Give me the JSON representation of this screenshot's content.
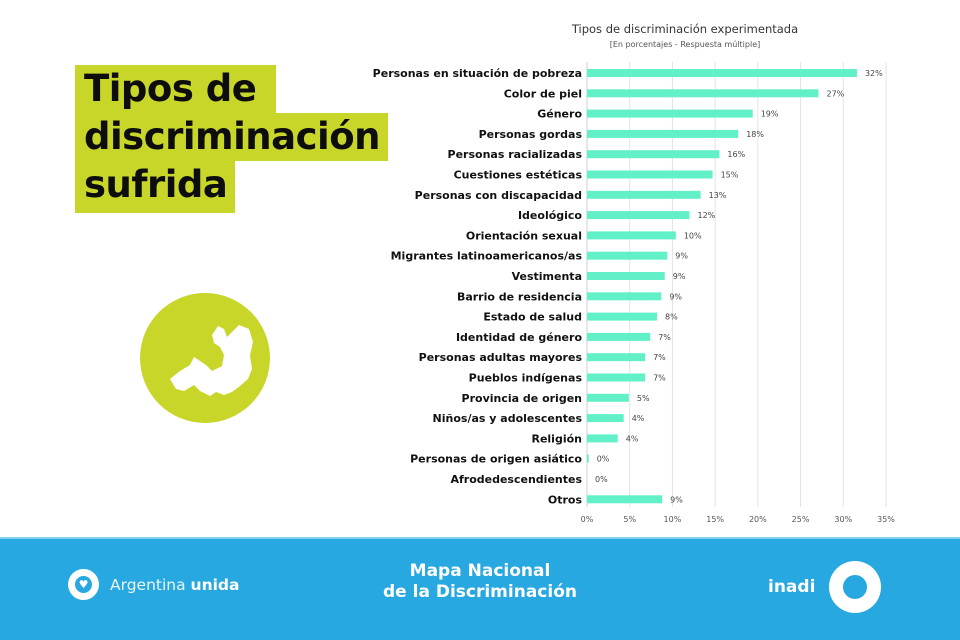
{
  "header": {
    "title_lines": [
      "Tipos de",
      "discriminación",
      "sufrida"
    ],
    "accent_color": "#c8d62a"
  },
  "badge": {
    "icon": "argentina-map-icon"
  },
  "chart_data": {
    "type": "bar",
    "orientation": "horizontal",
    "title": "Tipos de discriminación experimentada",
    "subtitle": "[En porcentajes - Respuesta múltiple]",
    "xlabel": "",
    "ylabel": "",
    "xlim": [
      0,
      35
    ],
    "x_ticks": [
      0,
      5,
      10,
      15,
      20,
      25,
      30,
      35
    ],
    "x_tick_labels": [
      "0%",
      "5%",
      "10%",
      "15%",
      "20%",
      "25%",
      "30%",
      "35%"
    ],
    "grid": "vertical",
    "bar_color": "#62f0c9",
    "categories": [
      "Personas en situación de pobreza",
      "Color de piel",
      "Género",
      "Personas gordas",
      "Personas racializadas",
      "Cuestiones estéticas",
      "Personas con discapacidad",
      "Ideológico",
      "Orientación sexual",
      "Migrantes latinoamericanos/as",
      "Vestimenta",
      "Barrio de residencia",
      "Estado de salud",
      "Identidad de género",
      "Personas adultas mayores",
      "Pueblos indígenas",
      "Provincia de origen",
      "Niños/as y adolescentes",
      "Religión",
      "Personas de origen asiático",
      "Afrodedescendientes",
      "Otros"
    ],
    "values": [
      31.6,
      27.1,
      19.4,
      17.7,
      15.5,
      14.7,
      13.3,
      12.0,
      10.4,
      9.4,
      9.1,
      8.7,
      8.2,
      7.4,
      6.8,
      6.8,
      4.9,
      4.3,
      3.6,
      0.2,
      0,
      8.8
    ],
    "value_labels": [
      "32%",
      "27%",
      "19%",
      "18%",
      "16%",
      "15%",
      "13%",
      "12%",
      "10%",
      "9%",
      "9%",
      "9%",
      "8%",
      "7%",
      "7%",
      "7%",
      "5%",
      "4%",
      "4%",
      "0%",
      "0%",
      "9%"
    ]
  },
  "footer": {
    "left_brand_regular": "Argentina ",
    "left_brand_bold": "unida",
    "center_line1": "Mapa Nacional",
    "center_line2": "de la Discriminación",
    "right_brand": "inadi",
    "background_color": "#27a8e0"
  }
}
